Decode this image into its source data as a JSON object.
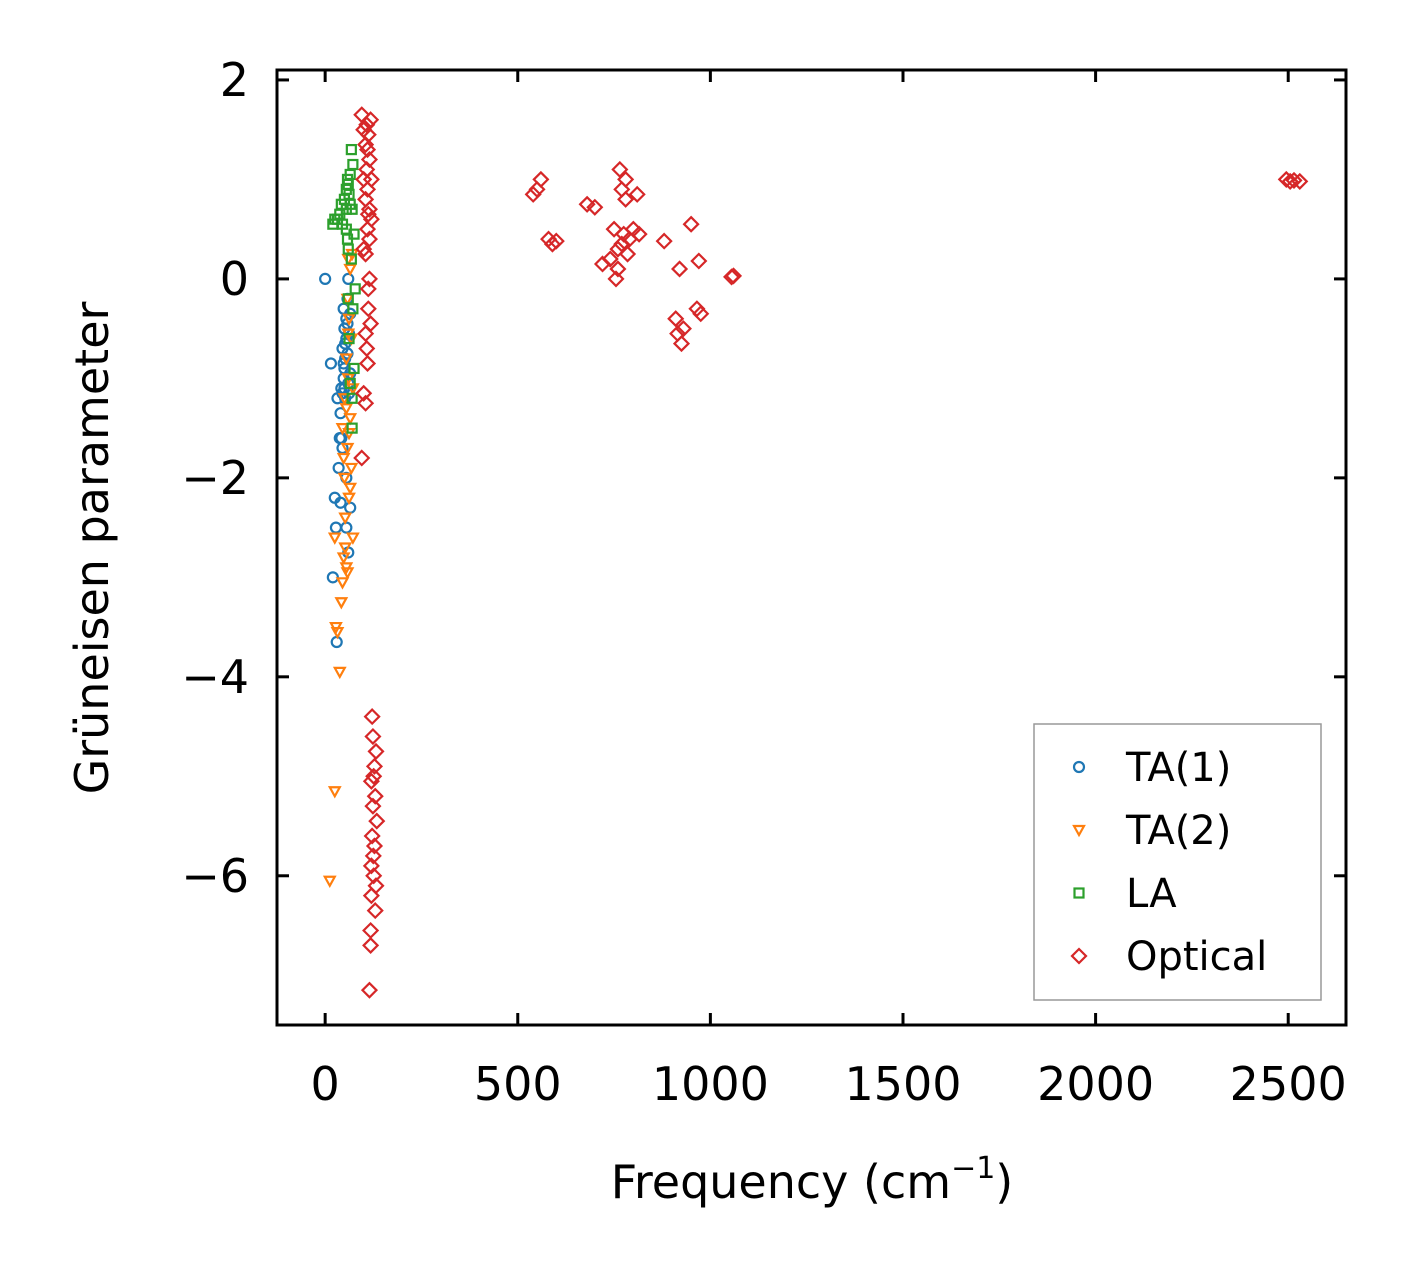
{
  "chart_data": {
    "type": "scatter",
    "title": "",
    "xlabel": "Frequency (cm",
    "xlabel_sup": "−1",
    "xlabel_close": ")",
    "ylabel": "Grüneisen parameter",
    "xlim": [
      -125,
      2650
    ],
    "ylim": [
      -7.5,
      2.1
    ],
    "xticks": [
      0,
      500,
      1000,
      1500,
      2000,
      2500
    ],
    "xtick_labels": [
      "0",
      "500",
      "1000",
      "1500",
      "2000",
      "2500"
    ],
    "yticks": [
      2,
      0,
      -2,
      -4,
      -6
    ],
    "ytick_labels": [
      "2",
      "0",
      "−2",
      "−4",
      "−6"
    ],
    "legend_position": "lower right",
    "series": [
      {
        "name": "TA(1)",
        "marker": "circle",
        "color": "#1f77b4",
        "points": [
          [
            0,
            0
          ],
          [
            15,
            -0.85
          ],
          [
            20,
            -3.0
          ],
          [
            25,
            -2.2
          ],
          [
            28,
            -2.5
          ],
          [
            30,
            -3.65
          ],
          [
            32,
            -1.2
          ],
          [
            35,
            -1.9
          ],
          [
            38,
            -1.6
          ],
          [
            40,
            -1.35
          ],
          [
            40,
            -2.25
          ],
          [
            42,
            -1.1
          ],
          [
            45,
            -0.7
          ],
          [
            45,
            -1.7
          ],
          [
            48,
            -0.3
          ],
          [
            48,
            -1.0
          ],
          [
            50,
            -0.9
          ],
          [
            50,
            -0.5
          ],
          [
            52,
            -0.8
          ],
          [
            52,
            -1.2
          ],
          [
            55,
            -0.4
          ],
          [
            55,
            -0.6
          ],
          [
            55,
            -2.0
          ],
          [
            55,
            -2.5
          ],
          [
            58,
            -0.2
          ],
          [
            58,
            -0.75
          ],
          [
            60,
            0.0
          ],
          [
            60,
            -1.05
          ],
          [
            60,
            -2.75
          ],
          [
            62,
            -0.55
          ],
          [
            62,
            -1.15
          ],
          [
            65,
            -0.35
          ],
          [
            65,
            -0.95
          ],
          [
            65,
            -2.3
          ],
          [
            45,
            -1.15
          ],
          [
            50,
            -1.1
          ],
          [
            52,
            -0.65
          ],
          [
            58,
            -0.45
          ],
          [
            48,
            -0.85
          ],
          [
            42,
            -1.6
          ]
        ]
      },
      {
        "name": "TA(2)",
        "marker": "triangle-down",
        "color": "#ff7f0e",
        "points": [
          [
            12,
            -6.05
          ],
          [
            25,
            -5.15
          ],
          [
            25,
            -2.6
          ],
          [
            28,
            -3.5
          ],
          [
            32,
            -3.55
          ],
          [
            38,
            -3.95
          ],
          [
            42,
            -3.25
          ],
          [
            45,
            -3.05
          ],
          [
            45,
            -1.5
          ],
          [
            48,
            -2.8
          ],
          [
            50,
            -1.2
          ],
          [
            50,
            -2.0
          ],
          [
            52,
            -2.4
          ],
          [
            55,
            -2.9
          ],
          [
            55,
            -0.8
          ],
          [
            58,
            -1.7
          ],
          [
            58,
            -0.2
          ],
          [
            60,
            -1.0
          ],
          [
            60,
            0.2
          ],
          [
            62,
            -2.2
          ],
          [
            62,
            -0.4
          ],
          [
            65,
            -1.4
          ],
          [
            65,
            0.1
          ],
          [
            68,
            -0.6
          ],
          [
            68,
            -1.9
          ],
          [
            70,
            0.25
          ],
          [
            72,
            -1.1
          ],
          [
            72,
            -2.6
          ],
          [
            58,
            -2.95
          ],
          [
            55,
            -1.3
          ],
          [
            60,
            -0.55
          ],
          [
            65,
            -2.1
          ],
          [
            48,
            -1.8
          ],
          [
            52,
            -2.7
          ],
          [
            62,
            -1.55
          ]
        ]
      },
      {
        "name": "LA",
        "marker": "square",
        "color": "#2ca02c",
        "points": [
          [
            20,
            0.55
          ],
          [
            25,
            0.6
          ],
          [
            32,
            0.6
          ],
          [
            38,
            0.65
          ],
          [
            42,
            0.75
          ],
          [
            45,
            0.55
          ],
          [
            50,
            0.8
          ],
          [
            55,
            0.9
          ],
          [
            55,
            0.5
          ],
          [
            58,
            1.0
          ],
          [
            58,
            0.4
          ],
          [
            60,
            0.95
          ],
          [
            60,
            -0.2
          ],
          [
            62,
            0.85
          ],
          [
            62,
            -0.6
          ],
          [
            65,
            1.05
          ],
          [
            65,
            -1.05
          ],
          [
            68,
            1.3
          ],
          [
            68,
            0.2
          ],
          [
            70,
            0.7
          ],
          [
            70,
            -1.5
          ],
          [
            72,
            -0.3
          ],
          [
            72,
            1.15
          ],
          [
            75,
            -0.9
          ],
          [
            75,
            0.45
          ],
          [
            78,
            -0.1
          ],
          [
            65,
            0.75
          ],
          [
            60,
            0.3
          ],
          [
            55,
            0.7
          ],
          [
            70,
            -1.2
          ]
        ]
      },
      {
        "name": "Optical",
        "marker": "diamond",
        "color": "#d62728",
        "points": [
          [
            95,
            1.65
          ],
          [
            95,
            -1.8
          ],
          [
            100,
            1.5
          ],
          [
            100,
            -1.15
          ],
          [
            105,
            1.35
          ],
          [
            105,
            -1.25
          ],
          [
            105,
            -0.55
          ],
          [
            105,
            0.25
          ],
          [
            108,
            1.1
          ],
          [
            108,
            -0.7
          ],
          [
            110,
            0.9
          ],
          [
            110,
            -0.85
          ],
          [
            110,
            0.5
          ],
          [
            112,
            1.45
          ],
          [
            112,
            -0.3
          ],
          [
            112,
            -0.1
          ],
          [
            115,
            0.7
          ],
          [
            115,
            1.2
          ],
          [
            115,
            0.0
          ],
          [
            118,
            -0.45
          ],
          [
            118,
            1.6
          ],
          [
            100,
            1.0
          ],
          [
            100,
            0.3
          ],
          [
            105,
            0.8
          ],
          [
            110,
            1.3
          ],
          [
            115,
            0.4
          ],
          [
            120,
            0.6
          ],
          [
            120,
            1.0
          ],
          [
            108,
            1.55
          ],
          [
            112,
            0.65
          ],
          [
            115,
            -7.15
          ],
          [
            118,
            -6.7
          ],
          [
            118,
            -6.55
          ],
          [
            120,
            -6.2
          ],
          [
            120,
            -5.9
          ],
          [
            122,
            -5.6
          ],
          [
            122,
            -4.4
          ],
          [
            124,
            -5.3
          ],
          [
            124,
            -4.6
          ],
          [
            126,
            -5.0
          ],
          [
            126,
            -6.0
          ],
          [
            128,
            -5.7
          ],
          [
            128,
            -4.9
          ],
          [
            130,
            -6.35
          ],
          [
            130,
            -5.2
          ],
          [
            132,
            -4.75
          ],
          [
            132,
            -6.1
          ],
          [
            134,
            -5.45
          ],
          [
            120,
            -5.05
          ],
          [
            125,
            -5.8
          ],
          [
            540,
            0.85
          ],
          [
            550,
            0.9
          ],
          [
            560,
            1.0
          ],
          [
            580,
            0.4
          ],
          [
            590,
            0.35
          ],
          [
            600,
            0.38
          ],
          [
            680,
            0.75
          ],
          [
            700,
            0.72
          ],
          [
            720,
            0.15
          ],
          [
            740,
            0.2
          ],
          [
            750,
            0.5
          ],
          [
            755,
            0.0
          ],
          [
            760,
            0.3
          ],
          [
            765,
            1.1
          ],
          [
            770,
            0.9
          ],
          [
            775,
            0.45
          ],
          [
            780,
            0.8
          ],
          [
            785,
            0.25
          ],
          [
            790,
            0.4
          ],
          [
            800,
            0.5
          ],
          [
            810,
            0.85
          ],
          [
            815,
            0.45
          ],
          [
            760,
            0.1
          ],
          [
            770,
            0.35
          ],
          [
            780,
            1.0
          ],
          [
            880,
            0.38
          ],
          [
            910,
            -0.4
          ],
          [
            915,
            -0.55
          ],
          [
            920,
            0.1
          ],
          [
            925,
            -0.65
          ],
          [
            930,
            -0.5
          ],
          [
            950,
            0.55
          ],
          [
            965,
            -0.3
          ],
          [
            970,
            0.18
          ],
          [
            975,
            -0.35
          ],
          [
            1055,
            0.02
          ],
          [
            1060,
            0.03
          ],
          [
            2495,
            1.0
          ],
          [
            2505,
            0.98
          ],
          [
            2515,
            0.99
          ],
          [
            2530,
            0.98
          ]
        ]
      }
    ]
  }
}
